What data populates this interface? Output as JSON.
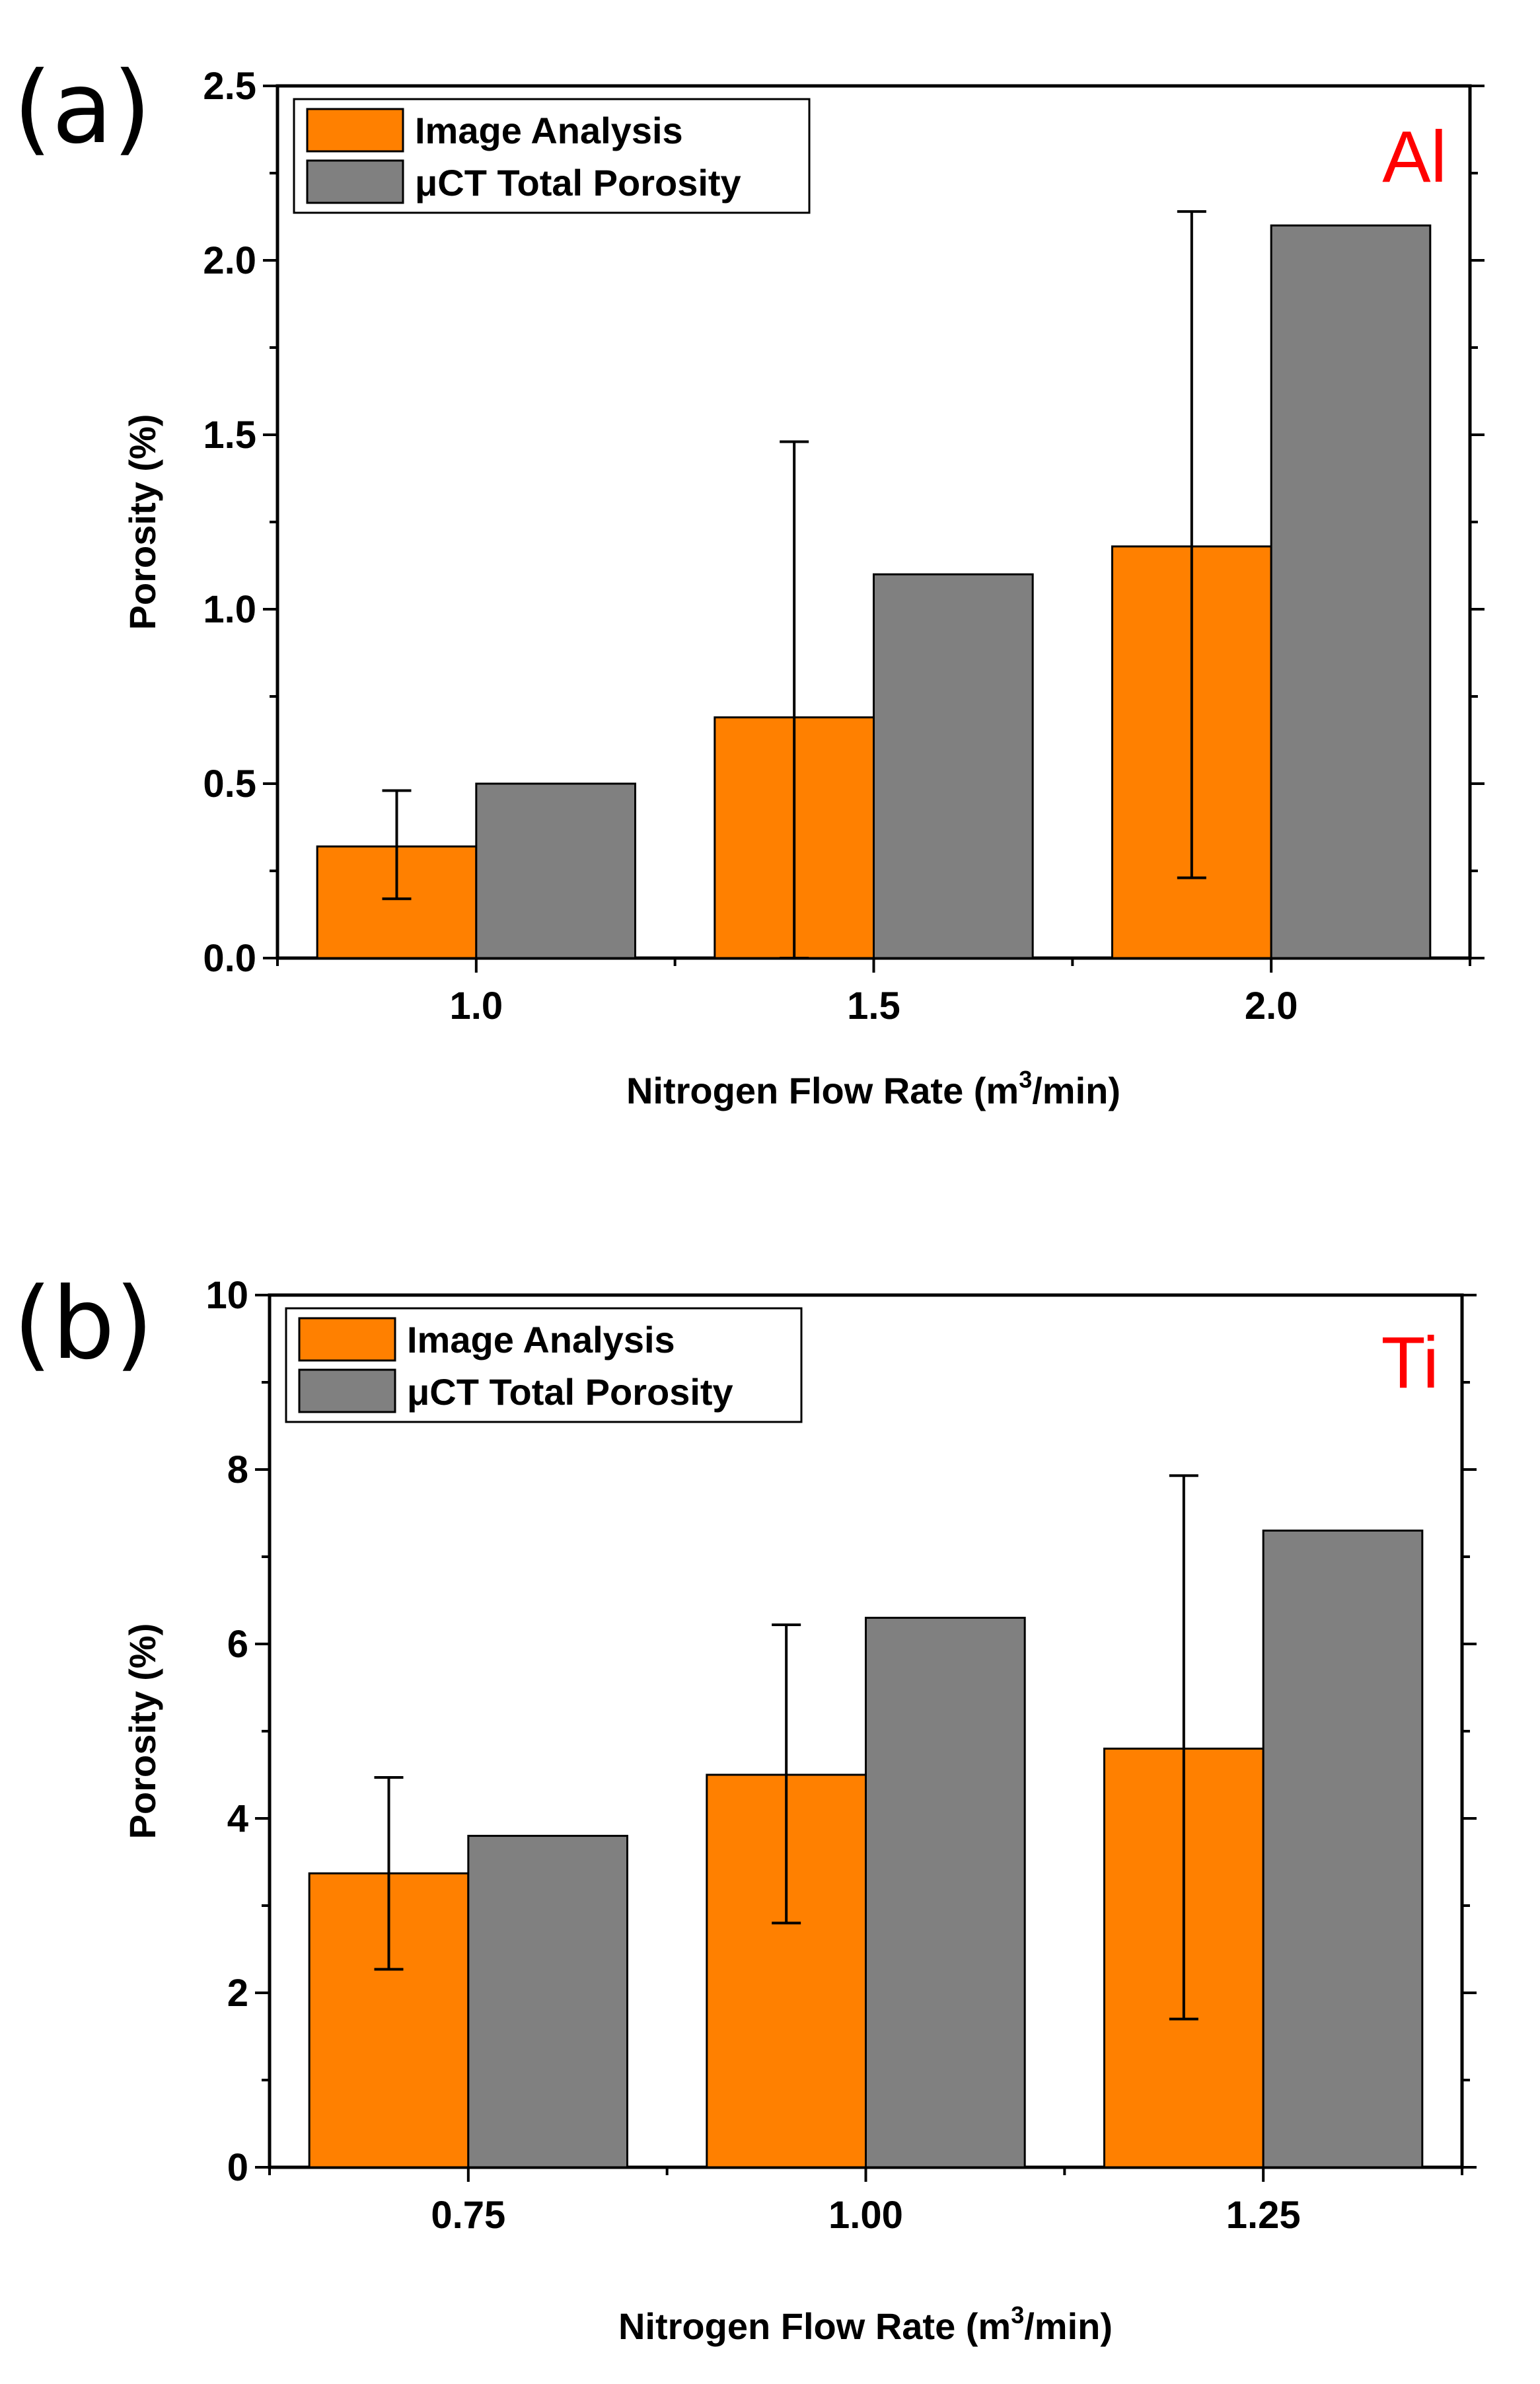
{
  "chart_data": [
    {
      "type": "bar",
      "panel_label": "(a)",
      "material": "Al",
      "categories": [
        "1.0",
        "1.5",
        "2.0"
      ],
      "series": [
        {
          "name": "Image Analysis",
          "values": [
            0.32,
            0.69,
            1.18
          ],
          "error_low": [
            0.17,
            0.0,
            0.23
          ],
          "error_high": [
            0.48,
            1.48,
            2.14
          ],
          "color": "#ff8000"
        },
        {
          "name": "μCT Total Porosity",
          "values": [
            0.5,
            1.1,
            2.1
          ],
          "color": "#808080"
        }
      ],
      "xlabel": "Nitrogen Flow Rate (m",
      "xlabel_sup": "3",
      "xlabel_end": "/min)",
      "ylabel": "Porosity (%)",
      "ylim": [
        0,
        2.5
      ],
      "yticks": [
        "0.0",
        "0.5",
        "1.0",
        "1.5",
        "2.0",
        "2.5"
      ],
      "legend_position": "top-left"
    },
    {
      "type": "bar",
      "panel_label": "(b)",
      "material": "Ti",
      "categories": [
        "0.75",
        "1.00",
        "1.25"
      ],
      "series": [
        {
          "name": "Image Analysis",
          "values": [
            3.37,
            4.5,
            4.8
          ],
          "error_low": [
            2.27,
            2.8,
            1.7
          ],
          "error_high": [
            4.47,
            6.22,
            7.93
          ],
          "color": "#ff8000"
        },
        {
          "name": "μCT Total Porosity",
          "values": [
            3.8,
            6.3,
            7.3
          ],
          "color": "#808080"
        }
      ],
      "xlabel": "Nitrogen Flow Rate (m",
      "xlabel_sup": "3",
      "xlabel_end": "/min)",
      "ylabel": "Porosity (%)",
      "ylim": [
        0,
        10
      ],
      "yticks": [
        "0",
        "2",
        "4",
        "6",
        "8",
        "10"
      ],
      "legend_position": "top-left"
    }
  ]
}
